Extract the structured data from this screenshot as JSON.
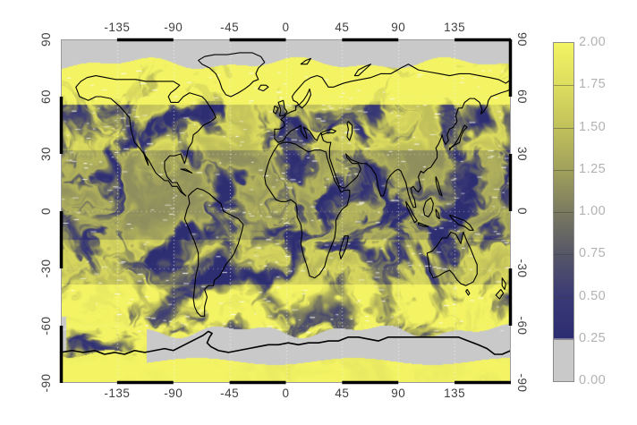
{
  "chart_data": {
    "type": "heatmap",
    "title": "",
    "description": "Global geophysical field plotted on an equirectangular longitude-latitude map with swirling cloud-like structure. Values span 0 to 2. Dark navy dominates the tropics with thin yellow filaments; a bright yellow band covers roughly 62-78 deg N and the Southern Ocean around 45-62 deg S; light gray areas at both poles are missing data (Arctic cap above ~78N, Antarctica). Black coastlines are overlaid and the frame is a checkered black/white border.",
    "x_axis": {
      "unit": "degrees longitude",
      "range": [
        -180,
        180
      ],
      "ticks": [
        -135,
        -90,
        -45,
        0,
        45,
        90,
        135
      ]
    },
    "y_axis": {
      "unit": "degrees latitude",
      "range": [
        -90,
        90
      ],
      "ticks": [
        90,
        60,
        30,
        0,
        -30,
        -60,
        -90
      ]
    },
    "grid": {
      "meridians_every_deg": 45,
      "parallels_every_deg": 30,
      "style": "dotted light gray"
    },
    "colorbar": {
      "range": [
        0,
        2
      ],
      "tick_labels": [
        "0.00",
        "0.25",
        "0.50",
        "0.75",
        "1.00",
        "1.25",
        "1.50",
        "1.75",
        "2.00"
      ],
      "nodata_color": "#c9c9c9",
      "nodata_range": [
        0,
        0.25
      ],
      "stops": [
        {
          "value": 0.25,
          "color": "#2c2c72"
        },
        {
          "value": 0.5,
          "color": "#3a3a76"
        },
        {
          "value": 0.75,
          "color": "#565668"
        },
        {
          "value": 1.0,
          "color": "#7a7a60"
        },
        {
          "value": 1.25,
          "color": "#a1a15c"
        },
        {
          "value": 1.5,
          "color": "#c1c15b"
        },
        {
          "value": 1.75,
          "color": "#dddd5f"
        },
        {
          "value": 2.0,
          "color": "#f3f364"
        }
      ]
    }
  },
  "axis_labels": {
    "top": [
      "-135",
      "-90",
      "-45",
      "0",
      "45",
      "90",
      "135"
    ],
    "bottom": [
      "-135",
      "-90",
      "-45",
      "0",
      "45",
      "90",
      "135"
    ],
    "left": [
      "90",
      "60",
      "30",
      "0",
      "-30",
      "-60",
      "-90"
    ],
    "right": [
      "90",
      "60",
      "30",
      "0",
      "-30",
      "-60",
      "-90"
    ]
  },
  "colorbar_labels": [
    "2.00",
    "1.75",
    "1.50",
    "1.25",
    "1.00",
    "0.75",
    "0.50",
    "0.25",
    "0.00"
  ],
  "colors": {
    "background": "#ffffff",
    "axis_label": "#3f3f3f",
    "colorbar_label": "#b2b2b2",
    "frame_line": "#9a9a9a",
    "frame_band": "#000000",
    "coastline": "#000000",
    "nodata_gray": "#c9c9c9",
    "field_low_navy": "#2c2c72",
    "field_high_yellow": "#f0f050",
    "speckle": "#ffffff"
  }
}
